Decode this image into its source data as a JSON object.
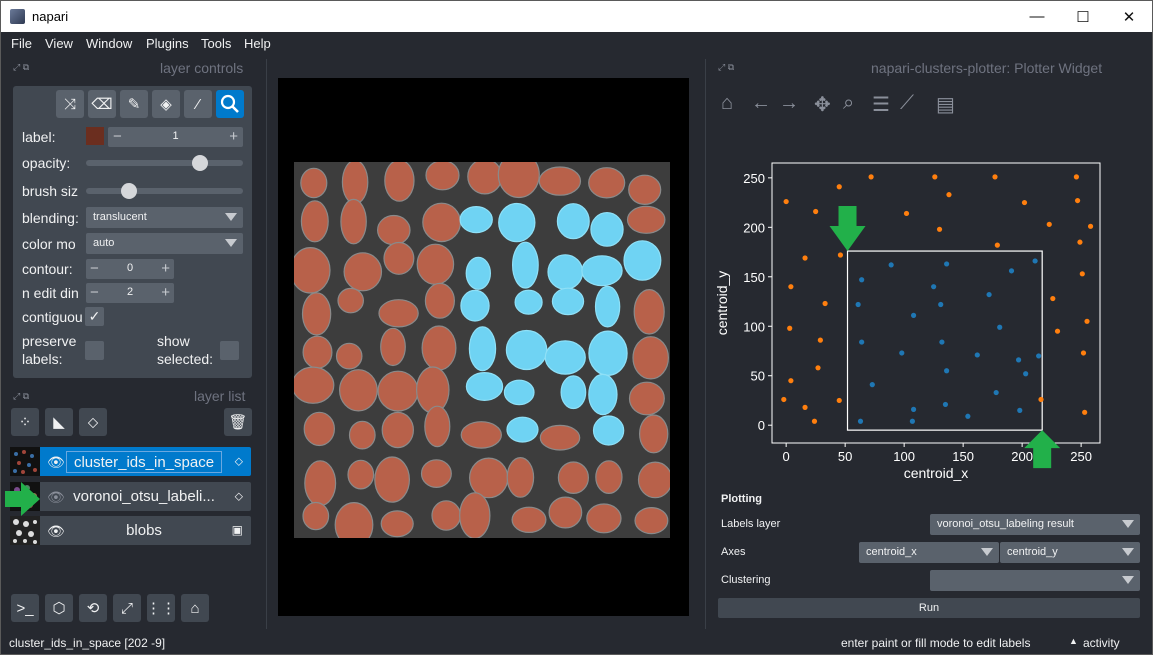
{
  "window": {
    "title": "napari",
    "minimize": "—",
    "maximize": "☐",
    "close": "✕"
  },
  "menu": [
    "File",
    "View",
    "Window",
    "Plugins",
    "Tools",
    "Help"
  ],
  "layer_controls": {
    "title": "layer controls",
    "label_label": "label:",
    "label_value": "1",
    "label_color": "#6b2e1f",
    "opacity_label": "opacity:",
    "opacity_value": 0.75,
    "brush_label": "brush siz",
    "brush_value": 0.25,
    "blending_label": "blending:",
    "blending_value": "translucent",
    "color_mode_label": "color mo",
    "color_mode_value": "auto",
    "contour_label": "contour:",
    "contour_value": "0",
    "n_edit_label": "n edit din",
    "n_edit_value": "2",
    "contiguous_label": "contiguou",
    "contiguous_check": "✓",
    "preserve_label_1": "preserve",
    "preserve_label_2": "labels:",
    "show_selected_1": "show",
    "show_selected_2": "selected:"
  },
  "layer_list": {
    "title": "layer list",
    "layers": [
      {
        "name": "cluster_ids_in_space",
        "type_icon": "tag-icon"
      },
      {
        "name": "voronoi_otsu_labeli...",
        "type_icon": "tag-icon"
      },
      {
        "name": "blobs",
        "type_icon": "image-icon"
      }
    ]
  },
  "plotter": {
    "title": "napari-clusters-plotter: Plotter Widget",
    "plotting_heading": "Plotting",
    "labels_layer_label": "Labels layer",
    "labels_layer_value": "voronoi_otsu_labeling result",
    "axes_label": "Axes",
    "axes_x": "centroid_x",
    "axes_y": "centroid_y",
    "clustering_label": "Clustering",
    "clustering_value": "",
    "run_label": "Run"
  },
  "chart_data": {
    "type": "scatter",
    "xlabel": "centroid_x",
    "ylabel": "centroid_y",
    "xlim": [
      -12,
      266
    ],
    "ylim": [
      -18,
      265
    ],
    "xticks": [
      "0",
      "50",
      "100",
      "150",
      "200",
      "250"
    ],
    "yticks": [
      "0",
      "50",
      "100",
      "150",
      "200",
      "250"
    ],
    "series": [
      {
        "color": "#1f77b4",
        "points": [
          [
            64,
            147
          ],
          [
            89,
            162
          ],
          [
            61,
            122
          ],
          [
            108,
            111
          ],
          [
            125,
            140
          ],
          [
            136,
            163
          ],
          [
            131,
            122
          ],
          [
            172,
            132
          ],
          [
            191,
            156
          ],
          [
            211,
            166
          ],
          [
            64,
            84
          ],
          [
            98,
            73
          ],
          [
            132,
            84
          ],
          [
            162,
            71
          ],
          [
            181,
            99
          ],
          [
            197,
            66
          ],
          [
            203,
            52
          ],
          [
            214,
            70
          ],
          [
            73,
            41
          ],
          [
            136,
            55
          ],
          [
            154,
            9
          ],
          [
            108,
            16
          ],
          [
            135,
            21
          ],
          [
            178,
            33
          ],
          [
            198,
            15
          ],
          [
            63,
            4
          ],
          [
            107,
            4
          ]
        ]
      },
      {
        "color": "#ff7f0e",
        "points": [
          [
            0,
            226
          ],
          [
            25,
            216
          ],
          [
            45,
            241
          ],
          [
            72,
            251
          ],
          [
            102,
            214
          ],
          [
            126,
            251
          ],
          [
            130,
            198
          ],
          [
            138,
            233
          ],
          [
            177,
            251
          ],
          [
            179,
            182
          ],
          [
            202,
            225
          ],
          [
            223,
            203
          ],
          [
            246,
            251
          ],
          [
            247,
            227
          ],
          [
            249,
            185
          ],
          [
            16,
            169
          ],
          [
            46,
            172
          ],
          [
            4,
            140
          ],
          [
            33,
            123
          ],
          [
            3,
            98
          ],
          [
            29,
            86
          ],
          [
            4,
            45
          ],
          [
            27,
            58
          ],
          [
            16,
            18
          ],
          [
            -2,
            26
          ],
          [
            24,
            4
          ],
          [
            45,
            25
          ],
          [
            216,
            26
          ],
          [
            230,
            95
          ],
          [
            226,
            128
          ],
          [
            251,
            153
          ],
          [
            255,
            105
          ],
          [
            252,
            73
          ],
          [
            258,
            201
          ],
          [
            253,
            13
          ]
        ]
      }
    ],
    "selection_box": {
      "x0": 52,
      "x1": 217,
      "y0": -5,
      "y1": 176
    }
  },
  "status": {
    "left": "cluster_ids_in_space [202  -9]",
    "right": "enter paint or fill mode to edit labels",
    "activity": "activity"
  }
}
